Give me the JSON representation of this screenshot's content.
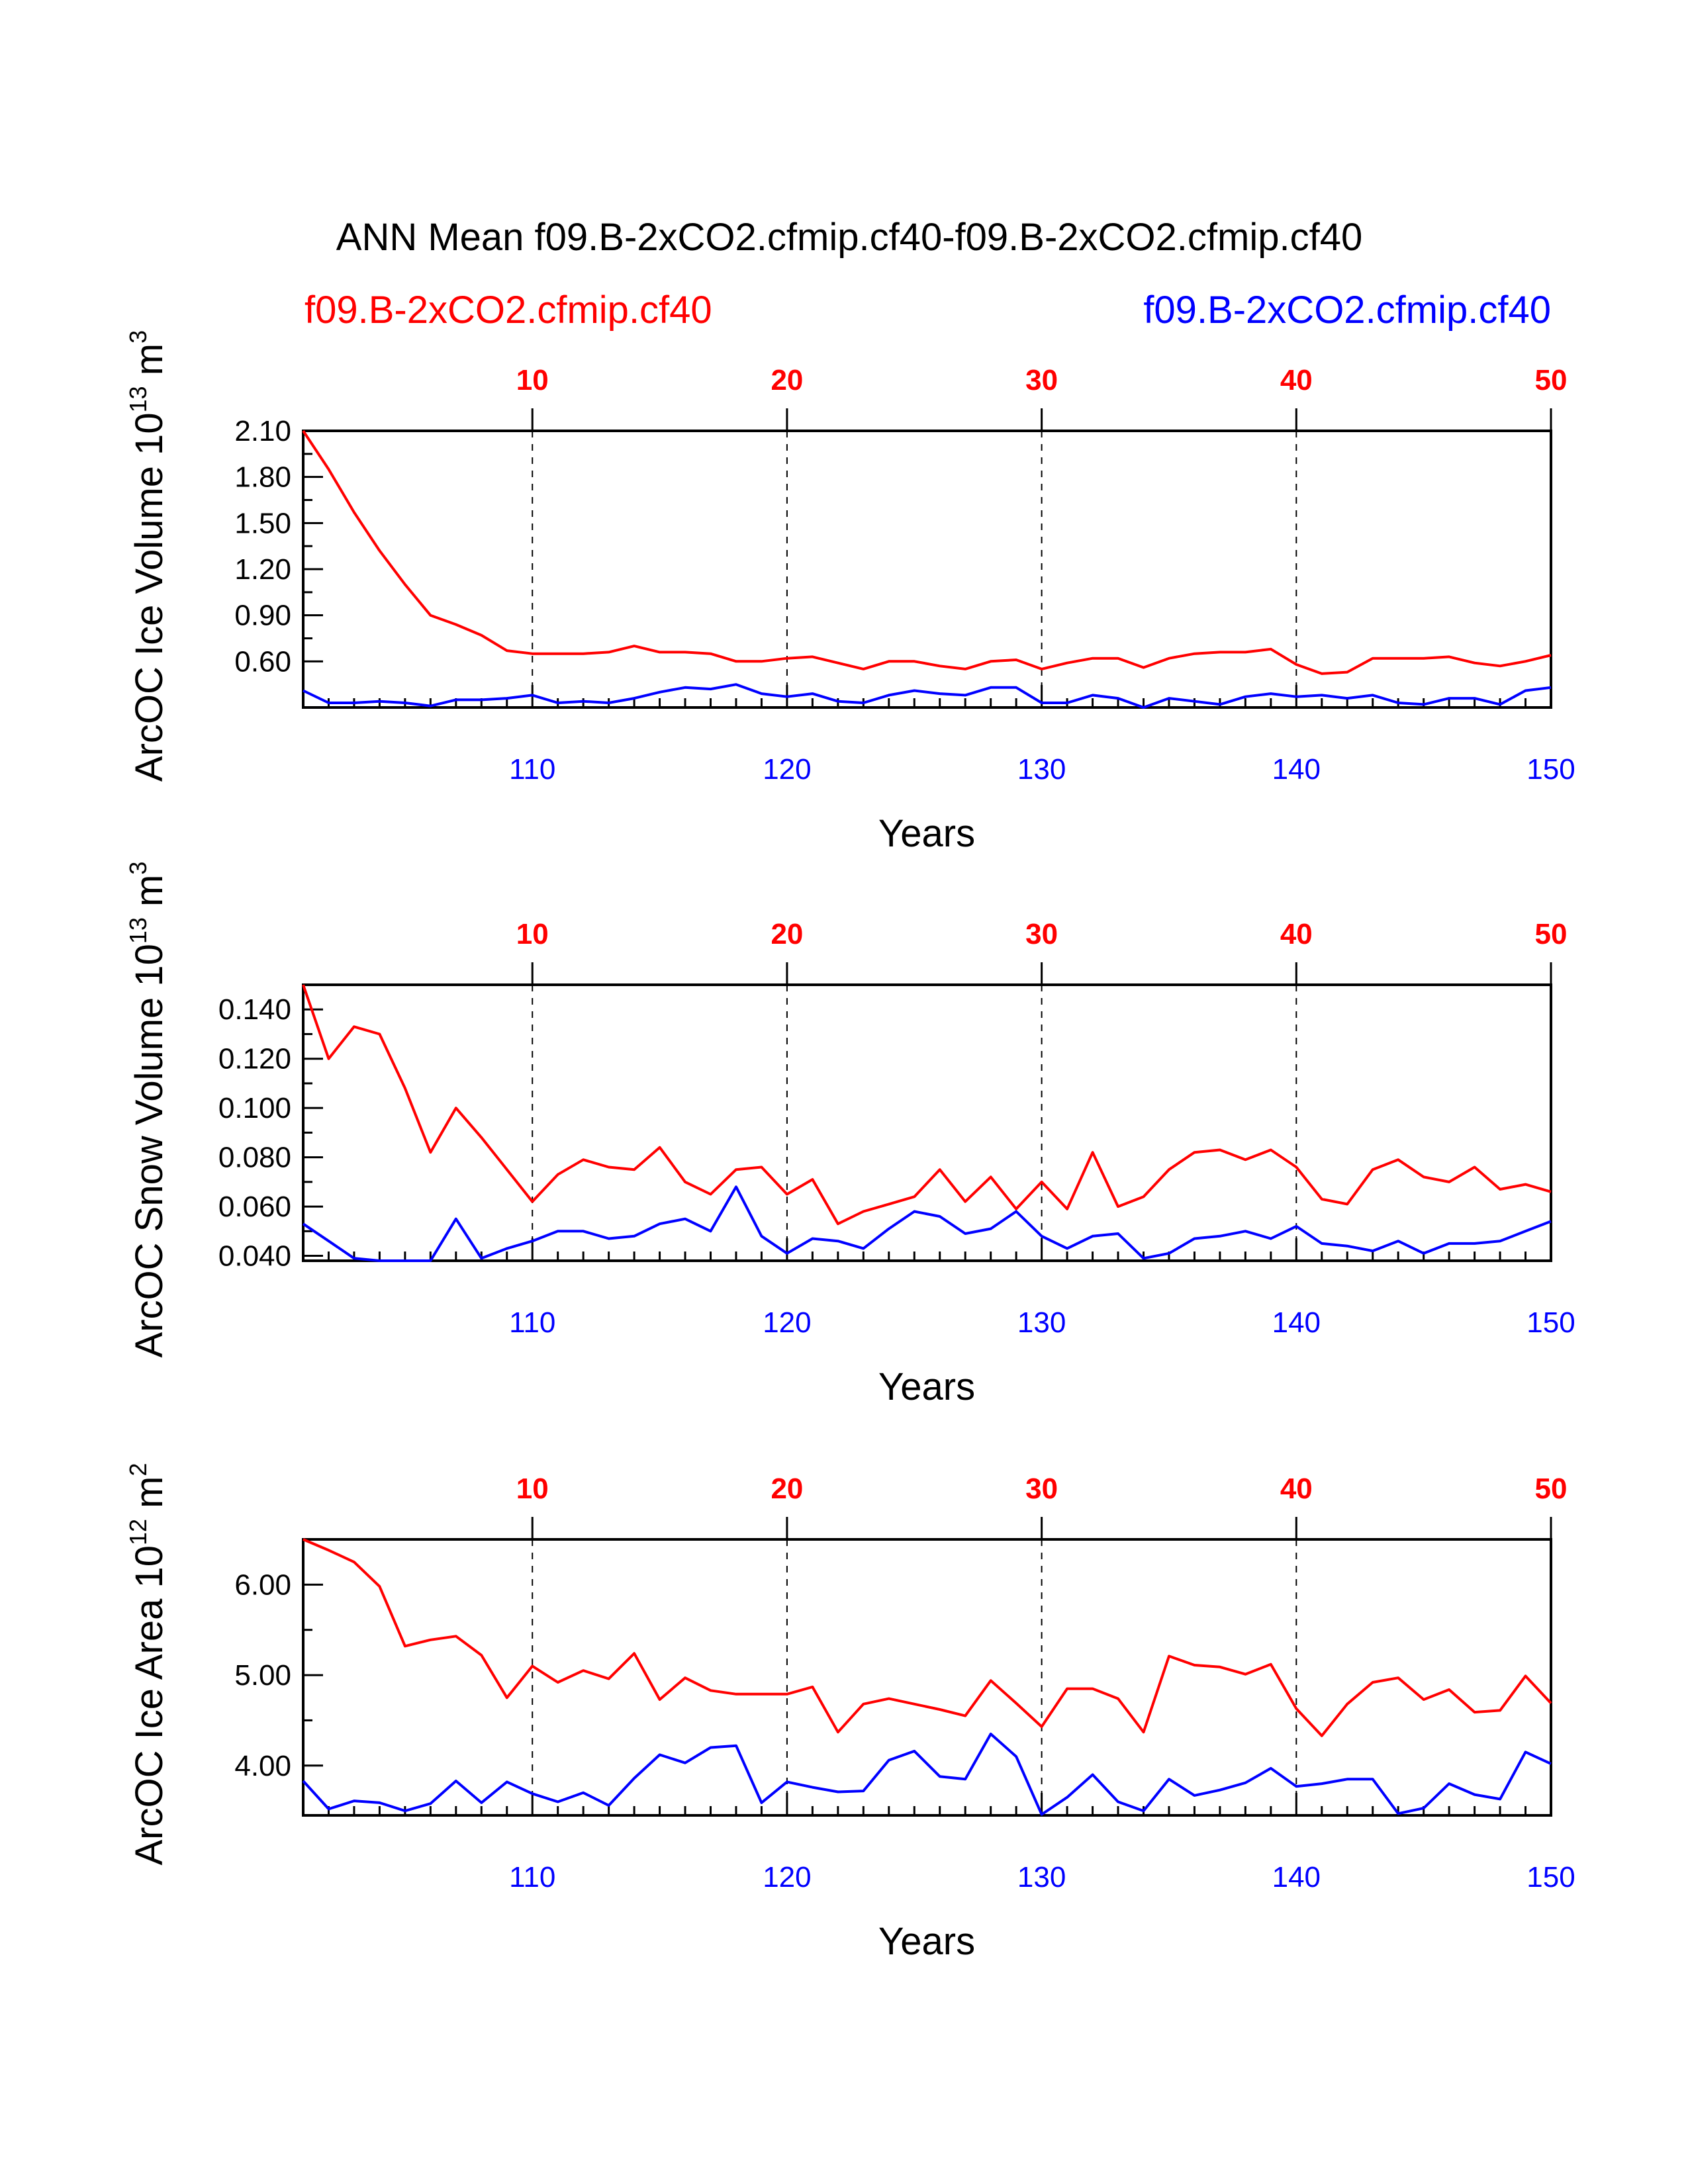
{
  "title": "ANN Mean f09.B-2xCO2.cfmip.cf40-f09.B-2xCO2.cfmip.cf40",
  "legend": {
    "left": {
      "label": "f09.B-2xCO2.cfmip.cf40",
      "color": "#ff0000"
    },
    "right": {
      "label": "f09.B-2xCO2.cfmip.cf40",
      "color": "#0000ff"
    }
  },
  "colors": {
    "series1": "#ff0000",
    "series2": "#0000ff",
    "axis": "#000000"
  },
  "chart_data": [
    {
      "type": "line",
      "ylabel_main": "ArcOC Ice Volume 10",
      "ylabel_exp": "13",
      "ylabel_unit": "m",
      "ylabel_unit_exp": "3",
      "xlabel": "Years",
      "top_x_ticks": [
        "10",
        "20",
        "30",
        "40",
        "50"
      ],
      "bottom_x_ticks": [
        "110",
        "120",
        "130",
        "140",
        "150"
      ],
      "y_ticks": [
        "2.10",
        "1.80",
        "1.50",
        "1.20",
        "0.90",
        "0.60"
      ],
      "y_tick_values": [
        2.1,
        1.8,
        1.5,
        1.2,
        0.9,
        0.6
      ],
      "ylim": [
        0.3,
        2.1
      ],
      "x": [
        101,
        102,
        103,
        104,
        105,
        106,
        107,
        108,
        109,
        110,
        111,
        112,
        113,
        114,
        115,
        116,
        117,
        118,
        119,
        120,
        121,
        122,
        123,
        124,
        125,
        126,
        127,
        128,
        129,
        130,
        131,
        132,
        133,
        134,
        135,
        136,
        137,
        138,
        139,
        140,
        141,
        142,
        143,
        144,
        145,
        146,
        147,
        148,
        149,
        150
      ],
      "series": [
        {
          "name": "f09.B-2xCO2.cfmip.cf40 (years 1-50)",
          "color": "#ff0000",
          "values": [
            2.12,
            1.85,
            1.57,
            1.32,
            1.1,
            0.9,
            0.84,
            0.77,
            0.67,
            0.65,
            0.65,
            0.65,
            0.66,
            0.7,
            0.66,
            0.66,
            0.65,
            0.6,
            0.6,
            0.62,
            0.63,
            0.59,
            0.55,
            0.6,
            0.6,
            0.57,
            0.55,
            0.6,
            0.61,
            0.55,
            0.59,
            0.62,
            0.62,
            0.56,
            0.62,
            0.65,
            0.66,
            0.66,
            0.68,
            0.58,
            0.52,
            0.53,
            0.62,
            0.62,
            0.62,
            0.63,
            0.59,
            0.57,
            0.6,
            0.64
          ]
        },
        {
          "name": "f09.B-2xCO2.cfmip.cf40 (years 101-150)",
          "color": "#0000ff",
          "values": [
            0.41,
            0.33,
            0.33,
            0.34,
            0.33,
            0.31,
            0.35,
            0.35,
            0.36,
            0.38,
            0.33,
            0.34,
            0.33,
            0.36,
            0.4,
            0.43,
            0.42,
            0.45,
            0.39,
            0.37,
            0.39,
            0.34,
            0.33,
            0.38,
            0.41,
            0.39,
            0.38,
            0.43,
            0.43,
            0.33,
            0.33,
            0.38,
            0.36,
            0.3,
            0.36,
            0.34,
            0.32,
            0.37,
            0.39,
            0.37,
            0.38,
            0.36,
            0.38,
            0.33,
            0.32,
            0.36,
            0.36,
            0.32,
            0.41,
            0.43
          ]
        }
      ]
    },
    {
      "type": "line",
      "ylabel_main": "ArcOC Snow Volume 10",
      "ylabel_exp": "13",
      "ylabel_unit": "m",
      "ylabel_unit_exp": "3",
      "xlabel": "Years",
      "top_x_ticks": [
        "10",
        "20",
        "30",
        "40",
        "50"
      ],
      "bottom_x_ticks": [
        "110",
        "120",
        "130",
        "140",
        "150"
      ],
      "y_ticks": [
        "0.140",
        "0.120",
        "0.100",
        "0.080",
        "0.060",
        "0.040"
      ],
      "y_tick_values": [
        0.14,
        0.12,
        0.1,
        0.08,
        0.06,
        0.04
      ],
      "ylim": [
        0.038,
        0.15
      ],
      "x": [
        101,
        102,
        103,
        104,
        105,
        106,
        107,
        108,
        109,
        110,
        111,
        112,
        113,
        114,
        115,
        116,
        117,
        118,
        119,
        120,
        121,
        122,
        123,
        124,
        125,
        126,
        127,
        128,
        129,
        130,
        131,
        132,
        133,
        134,
        135,
        136,
        137,
        138,
        139,
        140,
        141,
        142,
        143,
        144,
        145,
        146,
        147,
        148,
        149,
        150
      ],
      "series": [
        {
          "name": "f09.B-2xCO2.cfmip.cf40 (years 1-50)",
          "color": "#ff0000",
          "values": [
            0.15,
            0.12,
            0.133,
            0.13,
            0.108,
            0.082,
            0.1,
            0.088,
            0.075,
            0.062,
            0.073,
            0.079,
            0.076,
            0.075,
            0.084,
            0.07,
            0.065,
            0.075,
            0.076,
            0.065,
            0.071,
            0.053,
            0.058,
            0.061,
            0.064,
            0.075,
            0.062,
            0.072,
            0.059,
            0.07,
            0.059,
            0.082,
            0.06,
            0.064,
            0.075,
            0.082,
            0.083,
            0.079,
            0.083,
            0.076,
            0.063,
            0.061,
            0.075,
            0.079,
            0.072,
            0.07,
            0.076,
            0.067,
            0.069,
            0.066
          ]
        },
        {
          "name": "f09.B-2xCO2.cfmip.cf40 (years 101-150)",
          "color": "#0000ff",
          "values": [
            0.053,
            0.046,
            0.039,
            0.038,
            0.038,
            0.038,
            0.055,
            0.039,
            0.043,
            0.046,
            0.05,
            0.05,
            0.047,
            0.048,
            0.053,
            0.055,
            0.05,
            0.068,
            0.048,
            0.041,
            0.047,
            0.046,
            0.043,
            0.051,
            0.058,
            0.056,
            0.049,
            0.051,
            0.058,
            0.048,
            0.043,
            0.048,
            0.049,
            0.039,
            0.041,
            0.047,
            0.048,
            0.05,
            0.047,
            0.052,
            0.045,
            0.044,
            0.042,
            0.046,
            0.041,
            0.045,
            0.045,
            0.046,
            0.05,
            0.054
          ]
        }
      ]
    },
    {
      "type": "line",
      "ylabel_main": "ArcOC Ice Area 10",
      "ylabel_exp": "12",
      "ylabel_unit": "m",
      "ylabel_unit_exp": "2",
      "xlabel": "Years",
      "top_x_ticks": [
        "10",
        "20",
        "30",
        "40",
        "50"
      ],
      "bottom_x_ticks": [
        "110",
        "120",
        "130",
        "140",
        "150"
      ],
      "y_ticks": [
        "6.00",
        "5.00",
        "4.00"
      ],
      "y_tick_values": [
        6.0,
        5.0,
        4.0
      ],
      "ylim": [
        3.45,
        6.5
      ],
      "x": [
        101,
        102,
        103,
        104,
        105,
        106,
        107,
        108,
        109,
        110,
        111,
        112,
        113,
        114,
        115,
        116,
        117,
        118,
        119,
        120,
        121,
        122,
        123,
        124,
        125,
        126,
        127,
        128,
        129,
        130,
        131,
        132,
        133,
        134,
        135,
        136,
        137,
        138,
        139,
        140,
        141,
        142,
        143,
        144,
        145,
        146,
        147,
        148,
        149,
        150
      ],
      "series": [
        {
          "name": "f09.B-2xCO2.cfmip.cf40 (years 1-50)",
          "color": "#ff0000",
          "values": [
            6.5,
            6.38,
            6.25,
            5.98,
            5.32,
            5.39,
            5.43,
            5.22,
            4.75,
            5.1,
            4.92,
            5.05,
            4.96,
            5.24,
            4.73,
            4.97,
            4.83,
            4.79,
            4.79,
            4.79,
            4.87,
            4.37,
            4.68,
            4.74,
            4.68,
            4.62,
            4.55,
            4.94,
            4.69,
            4.43,
            4.85,
            4.85,
            4.74,
            4.37,
            5.21,
            5.11,
            5.09,
            5.01,
            5.12,
            4.63,
            4.33,
            4.68,
            4.92,
            4.97,
            4.73,
            4.84,
            4.59,
            4.61,
            4.99,
            4.69
          ]
        },
        {
          "name": "f09.B-2xCO2.cfmip.cf40 (years 101-150)",
          "color": "#0000ff",
          "values": [
            3.83,
            3.52,
            3.61,
            3.59,
            3.5,
            3.58,
            3.83,
            3.59,
            3.82,
            3.69,
            3.6,
            3.7,
            3.56,
            3.86,
            4.12,
            4.03,
            4.2,
            4.22,
            3.59,
            3.82,
            3.76,
            3.71,
            3.72,
            4.06,
            4.16,
            3.88,
            3.85,
            4.35,
            4.1,
            3.46,
            3.65,
            3.9,
            3.6,
            3.5,
            3.85,
            3.67,
            3.73,
            3.81,
            3.97,
            3.77,
            3.8,
            3.85,
            3.85,
            3.47,
            3.53,
            3.8,
            3.68,
            3.63,
            4.15,
            4.02
          ]
        }
      ]
    }
  ]
}
